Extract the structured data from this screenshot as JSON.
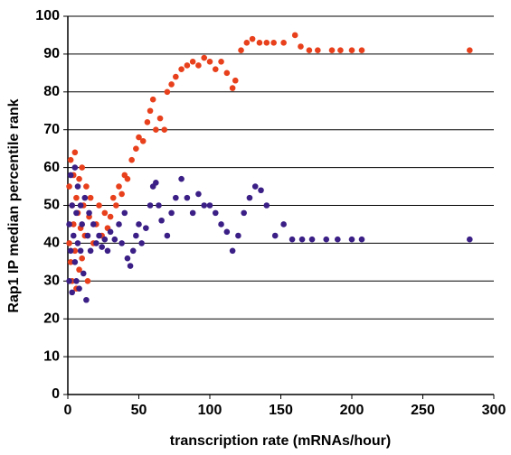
{
  "chart_data": {
    "type": "scatter",
    "x_label": "transcription rate (mRNAs/hour)",
    "y_label": "Rap1 IP median percentile rank",
    "xlim": [
      0,
      300
    ],
    "xticks": [
      0,
      50,
      100,
      150,
      200,
      250,
      300
    ],
    "ylim": [
      0,
      100
    ],
    "yticks": [
      0,
      10,
      20,
      30,
      40,
      50,
      60,
      70,
      80,
      90,
      100
    ],
    "grid": true,
    "series": [
      {
        "color": "#e8401c",
        "x": [
          1,
          1,
          2,
          2,
          3,
          3,
          4,
          4,
          5,
          5,
          6,
          6,
          7,
          8,
          8,
          9,
          10,
          10,
          11,
          12,
          13,
          14,
          15,
          16,
          18,
          20,
          22,
          24,
          26,
          28,
          30,
          32,
          34,
          36,
          38,
          40,
          42,
          45,
          48,
          50,
          53,
          56,
          58,
          60,
          62,
          65,
          68,
          70,
          73,
          76,
          80,
          84,
          88,
          92,
          96,
          100,
          104,
          108,
          112,
          116,
          118,
          122,
          126,
          130,
          135,
          140,
          145,
          152,
          160,
          164,
          170,
          176,
          186,
          192,
          200,
          207,
          283
        ],
        "values": [
          40,
          55,
          62,
          35,
          50,
          30,
          58,
          45,
          64,
          38,
          52,
          28,
          48,
          57,
          33,
          44,
          60,
          36,
          50,
          42,
          55,
          30,
          47,
          52,
          40,
          45,
          50,
          42,
          48,
          44,
          47,
          52,
          50,
          55,
          53,
          58,
          57,
          62,
          65,
          68,
          67,
          72,
          75,
          78,
          70,
          73,
          70,
          80,
          82,
          84,
          86,
          87,
          88,
          87,
          89,
          88,
          86,
          88,
          85,
          81,
          83,
          91,
          93,
          94,
          93,
          93,
          93,
          93,
          95,
          92,
          91,
          91,
          91,
          91,
          91,
          91,
          91
        ]
      },
      {
        "color": "#3b1f86",
        "x": [
          1,
          1,
          2,
          2,
          3,
          3,
          4,
          5,
          5,
          6,
          6,
          7,
          7,
          8,
          9,
          9,
          10,
          11,
          12,
          13,
          14,
          15,
          16,
          18,
          20,
          22,
          24,
          26,
          28,
          30,
          33,
          36,
          38,
          40,
          42,
          44,
          46,
          48,
          50,
          52,
          55,
          58,
          60,
          62,
          64,
          66,
          70,
          73,
          76,
          80,
          84,
          88,
          92,
          96,
          100,
          104,
          108,
          112,
          116,
          120,
          124,
          128,
          132,
          136,
          140,
          146,
          152,
          158,
          165,
          172,
          182,
          190,
          200,
          207,
          283
        ],
        "values": [
          30,
          45,
          58,
          38,
          50,
          27,
          42,
          60,
          35,
          48,
          30,
          55,
          40,
          28,
          50,
          38,
          45,
          32,
          52,
          25,
          42,
          48,
          38,
          45,
          40,
          42,
          39,
          41,
          38,
          43,
          41,
          45,
          40,
          48,
          36,
          34,
          38,
          42,
          45,
          40,
          44,
          50,
          55,
          56,
          50,
          46,
          42,
          48,
          52,
          57,
          52,
          48,
          53,
          50,
          50,
          48,
          45,
          43,
          38,
          42,
          48,
          52,
          55,
          54,
          50,
          42,
          45,
          41,
          41,
          41,
          41,
          41,
          41,
          41,
          41
        ]
      }
    ]
  }
}
